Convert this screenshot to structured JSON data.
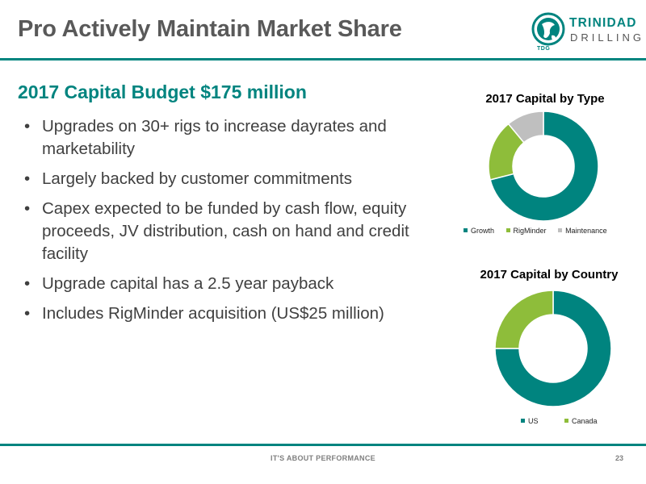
{
  "slide": {
    "title": "Pro Actively Maintain Market Share",
    "heading": "2017 Capital Budget $175 million",
    "bullets": [
      "Upgrades on 30+ rigs to increase dayrates and marketability",
      "Largely backed by customer commitments",
      "Capex expected to be funded by cash flow, equity proceeds, JV distribution, cash on hand and credit facility",
      "Upgrade capital has a 2.5 year payback",
      "Includes RigMinder acquisition (US$25 million)"
    ],
    "bullet_glyph": "•"
  },
  "logo": {
    "line1": "TRINIDAD",
    "line2": "DRILLING",
    "abbrev": "TDG",
    "color": "#00847f"
  },
  "footer": {
    "tagline": "IT'S ABOUT PERFORMANCE",
    "page_number": "23"
  },
  "chart_data": [
    {
      "type": "pie",
      "title": "2017 Capital by Type",
      "categories": [
        "Growth",
        "RigMinder",
        "Maintenance"
      ],
      "values": [
        71,
        18,
        11
      ],
      "colors": [
        "#00847f",
        "#8ebd3a",
        "#bfbfbf"
      ],
      "donut": true,
      "legend": "bottom"
    },
    {
      "type": "pie",
      "title": "2017 Capital by Country",
      "categories": [
        "US",
        "Canada"
      ],
      "values": [
        75,
        25
      ],
      "colors": [
        "#00847f",
        "#8ebd3a"
      ],
      "donut": true,
      "legend": "bottom"
    }
  ]
}
